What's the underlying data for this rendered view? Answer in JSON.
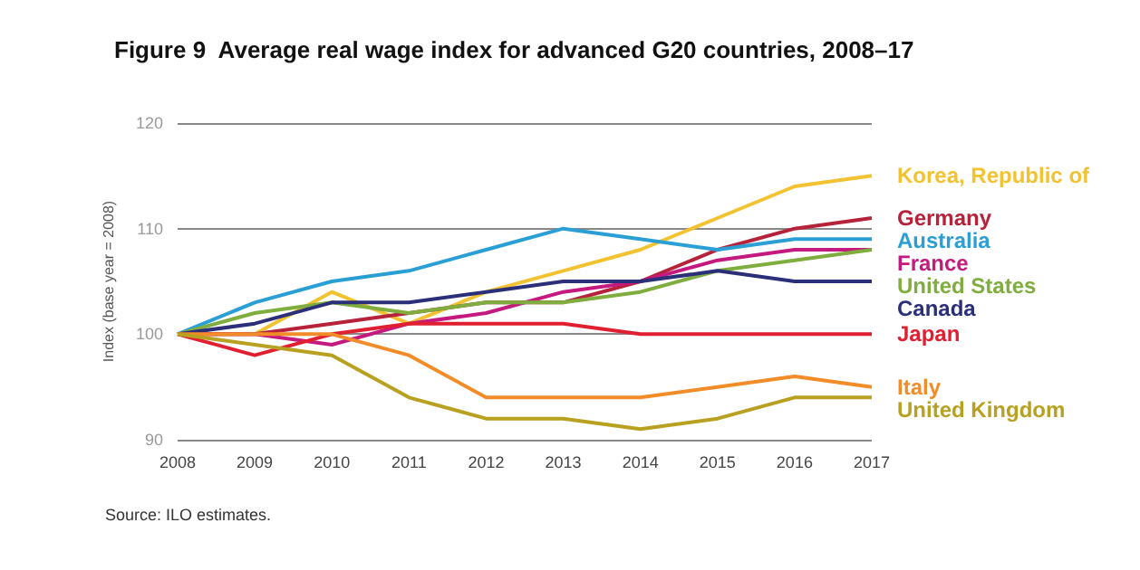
{
  "chart_data": {
    "type": "line",
    "title": "Figure 9  Average real wage index for advanced G20 countries, 2008–17",
    "ylabel": "Index (base year = 2008)",
    "categories": [
      "2008",
      "2009",
      "2010",
      "2011",
      "2012",
      "2013",
      "2014",
      "2015",
      "2016",
      "2017"
    ],
    "ylim": [
      90,
      120
    ],
    "yticks": [
      90,
      100,
      110,
      120
    ],
    "grid": "y",
    "legend": false,
    "annotations": [
      "Source: ILO estimates."
    ],
    "series": [
      {
        "name": "Korea, Republic of",
        "color": "#f2c230",
        "values": [
          100,
          100,
          104,
          101,
          104,
          106,
          108,
          111,
          114,
          115
        ]
      },
      {
        "name": "Germany",
        "color": "#b5223a",
        "values": [
          100,
          100,
          101,
          102,
          103,
          103,
          105,
          108,
          110,
          111
        ]
      },
      {
        "name": "Australia",
        "color": "#2a9fd6",
        "values": [
          100,
          103,
          105,
          106,
          108,
          110,
          109,
          108,
          109,
          109
        ]
      },
      {
        "name": "France",
        "color": "#c41a7f",
        "values": [
          100,
          100,
          99,
          101,
          102,
          104,
          105,
          107,
          108,
          108
        ]
      },
      {
        "name": "United States",
        "color": "#7fae3e",
        "values": [
          100,
          102,
          103,
          102,
          103,
          103,
          104,
          106,
          107,
          108
        ]
      },
      {
        "name": "Canada",
        "color": "#2b2f7a",
        "values": [
          100,
          101,
          103,
          103,
          104,
          105,
          105,
          106,
          105,
          105
        ]
      },
      {
        "name": "Japan",
        "color": "#e02030",
        "values": [
          100,
          98,
          100,
          101,
          101,
          101,
          100,
          100,
          100,
          100
        ]
      },
      {
        "name": "Italy",
        "color": "#f28c28",
        "values": [
          100,
          100,
          100,
          98,
          94,
          94,
          94,
          95,
          96,
          95
        ]
      },
      {
        "name": "United Kingdom",
        "color": "#b8a020",
        "values": [
          100,
          99,
          98,
          94,
          92,
          92,
          91,
          92,
          94,
          94
        ]
      }
    ]
  }
}
